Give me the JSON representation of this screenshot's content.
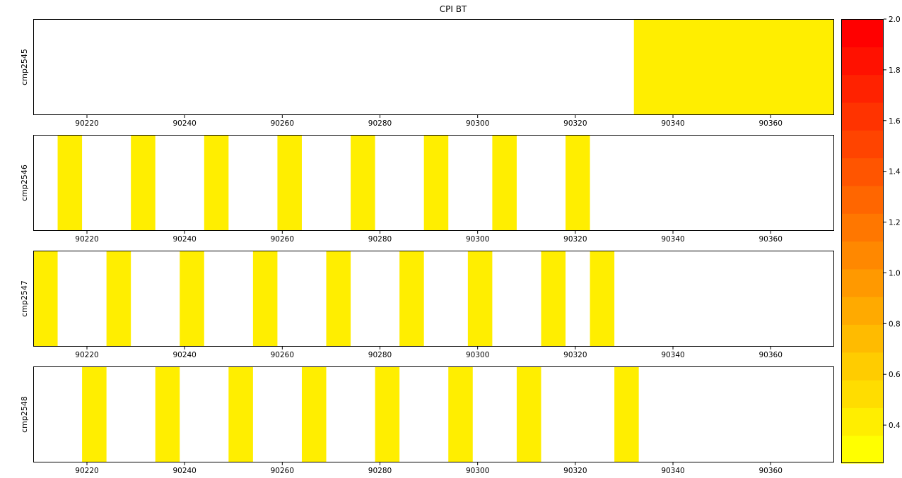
{
  "chart_data": {
    "type": "heatmap",
    "title": "CPI BT",
    "xlim": [
      90209,
      90373
    ],
    "x_ticks": [
      "90220",
      "90240",
      "90260",
      "90280",
      "90300",
      "90320",
      "90340",
      "90360"
    ],
    "x_tick_values": [
      90220,
      90240,
      90260,
      90280,
      90300,
      90320,
      90340,
      90360
    ],
    "rows": [
      {
        "label": "cmp2545",
        "intervals": [
          {
            "start": 90332,
            "end": 90373,
            "value": 0.4
          }
        ]
      },
      {
        "label": "cmp2546",
        "intervals": [
          {
            "start": 90214,
            "end": 90219,
            "value": 0.4
          },
          {
            "start": 90229,
            "end": 90234,
            "value": 0.4
          },
          {
            "start": 90244,
            "end": 90249,
            "value": 0.4
          },
          {
            "start": 90259,
            "end": 90264,
            "value": 0.4
          },
          {
            "start": 90274,
            "end": 90279,
            "value": 0.4
          },
          {
            "start": 90289,
            "end": 90294,
            "value": 0.4
          },
          {
            "start": 90303,
            "end": 90308,
            "value": 0.4
          },
          {
            "start": 90318,
            "end": 90323,
            "value": 0.4
          }
        ]
      },
      {
        "label": "cmp2547",
        "intervals": [
          {
            "start": 90209,
            "end": 90214,
            "value": 0.4
          },
          {
            "start": 90224,
            "end": 90229,
            "value": 0.4
          },
          {
            "start": 90239,
            "end": 90244,
            "value": 0.4
          },
          {
            "start": 90254,
            "end": 90259,
            "value": 0.4
          },
          {
            "start": 90269,
            "end": 90274,
            "value": 0.4
          },
          {
            "start": 90284,
            "end": 90289,
            "value": 0.4
          },
          {
            "start": 90298,
            "end": 90303,
            "value": 0.4
          },
          {
            "start": 90313,
            "end": 90318,
            "value": 0.4
          },
          {
            "start": 90323,
            "end": 90328,
            "value": 0.4
          }
        ]
      },
      {
        "label": "cmp2548",
        "intervals": [
          {
            "start": 90219,
            "end": 90224,
            "value": 0.4
          },
          {
            "start": 90234,
            "end": 90239,
            "value": 0.4
          },
          {
            "start": 90249,
            "end": 90254,
            "value": 0.4
          },
          {
            "start": 90264,
            "end": 90269,
            "value": 0.4
          },
          {
            "start": 90279,
            "end": 90284,
            "value": 0.4
          },
          {
            "start": 90294,
            "end": 90299,
            "value": 0.4
          },
          {
            "start": 90308,
            "end": 90313,
            "value": 0.4
          },
          {
            "start": 90328,
            "end": 90333,
            "value": 0.4
          }
        ]
      }
    ],
    "colorbar": {
      "range": [
        0.25,
        2.0
      ],
      "ticks": [
        "0.4",
        "0.6",
        "0.8",
        "1.0",
        "1.2",
        "1.4",
        "1.6",
        "1.8",
        "2.0"
      ],
      "tick_values": [
        0.4,
        0.6,
        0.8,
        1.0,
        1.2,
        1.4,
        1.6,
        1.8,
        2.0
      ],
      "colors": [
        "#ffff00",
        "#ffee00",
        "#ffdd00",
        "#ffcc00",
        "#ffbb00",
        "#ffaa00",
        "#ff9900",
        "#ff8800",
        "#ff7700",
        "#ff6600",
        "#ff5500",
        "#ff4400",
        "#ff3300",
        "#ff2200",
        "#ff1100",
        "#ff0000"
      ]
    },
    "grid": false,
    "legend": "none"
  }
}
